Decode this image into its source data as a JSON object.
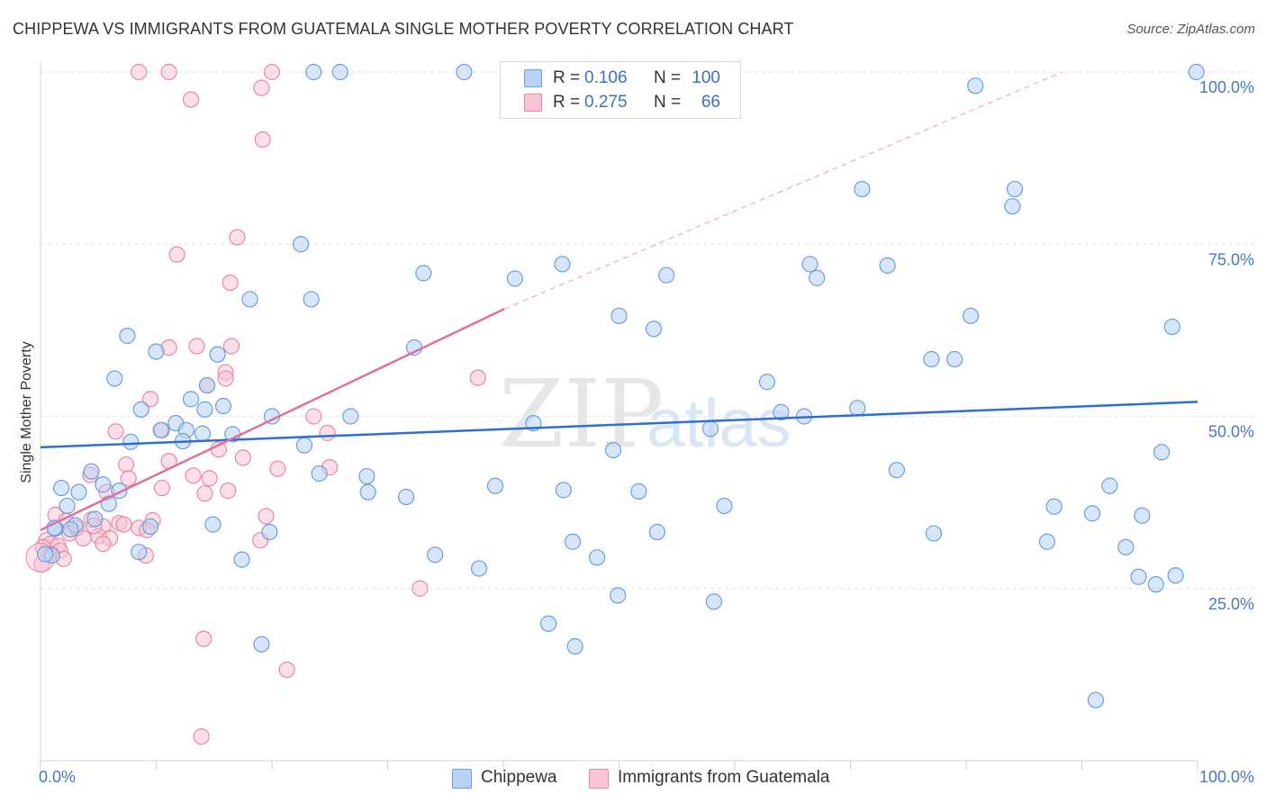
{
  "title": "CHIPPEWA VS IMMIGRANTS FROM GUATEMALA SINGLE MOTHER POVERTY CORRELATION CHART",
  "source": "Source: ZipAtlas.com",
  "watermark": {
    "zip": "ZIP",
    "atlas": "atlas"
  },
  "legend": {
    "r_label": "R =",
    "n_label": "N =",
    "items": [
      {
        "name": "Chippewa",
        "r": "0.106",
        "n": "100",
        "fill": "#b8d2f4",
        "stroke": "#6a9ee0"
      },
      {
        "name": "Immigrants from Guatemala",
        "r": "0.275",
        "n": "66",
        "fill": "#f9c4d4",
        "stroke": "#e888a8"
      }
    ]
  },
  "chart_data": {
    "type": "scatter",
    "title": "CHIPPEWA VS IMMIGRANTS FROM GUATEMALA SINGLE MOTHER POVERTY CORRELATION CHART",
    "xlabel": "",
    "ylabel": "Single Mother Poverty",
    "xlim": [
      0,
      100
    ],
    "ylim": [
      0,
      101
    ],
    "x_tick_labels": {
      "left": "0.0%",
      "right": "100.0%"
    },
    "y_ticks": [
      {
        "value": 25,
        "label": "25.0%"
      },
      {
        "value": 50,
        "label": "50.0%"
      },
      {
        "value": 75,
        "label": "75.0%"
      },
      {
        "value": 100,
        "label": "100.0%"
      }
    ],
    "grid": "horizontal dashed",
    "colors": {
      "blue_fill": "#b8d2f4",
      "blue_stroke": "#6a9ee0",
      "blue_line": "#2f6fd0",
      "pink_fill": "#f9c4d4",
      "pink_stroke": "#e888a8",
      "pink_line": "#e0709a"
    },
    "trendlines": [
      {
        "series": "Chippewa",
        "x0": 0,
        "y0": 45.5,
        "x1": 100,
        "y1": 52.1,
        "style": "solid"
      },
      {
        "series": "Immigrants from Guatemala",
        "x0": 0,
        "y0": 33.5,
        "x1": 40.1,
        "y1": 65.6,
        "style": "solid"
      },
      {
        "series": "Immigrants from Guatemala",
        "x0": 40.1,
        "y0": 65.6,
        "x1": 88.3,
        "y1": 100.0,
        "style": "dashed"
      }
    ],
    "series": [
      {
        "name": "Chippewa",
        "points": [
          [
            23.6,
            100
          ],
          [
            25.9,
            100
          ],
          [
            36.6,
            100
          ],
          [
            99.9,
            100
          ],
          [
            80.8,
            98
          ],
          [
            71.0,
            83
          ],
          [
            84.2,
            83
          ],
          [
            84.0,
            80.5
          ],
          [
            22.5,
            75
          ],
          [
            33.1,
            70.8
          ],
          [
            41.0,
            70.0
          ],
          [
            45.1,
            72.1
          ],
          [
            54.1,
            70.5
          ],
          [
            66.5,
            72.1
          ],
          [
            67.1,
            70.1
          ],
          [
            73.2,
            71.9
          ],
          [
            18.1,
            67
          ],
          [
            23.4,
            67
          ],
          [
            50.0,
            64.6
          ],
          [
            53.0,
            62.7
          ],
          [
            80.4,
            64.6
          ],
          [
            97.8,
            63.0
          ],
          [
            7.5,
            61.7
          ],
          [
            10.0,
            59.4
          ],
          [
            15.3,
            59.0
          ],
          [
            32.3,
            60.0
          ],
          [
            77.0,
            58.3
          ],
          [
            79.0,
            58.3
          ],
          [
            6.4,
            55.5
          ],
          [
            62.8,
            55.0
          ],
          [
            13.0,
            52.5
          ],
          [
            8.7,
            51.0
          ],
          [
            14.4,
            54.5
          ],
          [
            14.2,
            51.0
          ],
          [
            15.8,
            51.5
          ],
          [
            20.0,
            50.0
          ],
          [
            26.8,
            50.0
          ],
          [
            57.9,
            48.2
          ],
          [
            64.0,
            50.6
          ],
          [
            66.0,
            50.0
          ],
          [
            70.6,
            51.2
          ],
          [
            42.6,
            49.0
          ],
          [
            11.7,
            49.0
          ],
          [
            10.4,
            48.0
          ],
          [
            12.6,
            48.0
          ],
          [
            14.0,
            47.5
          ],
          [
            16.6,
            47.4
          ],
          [
            12.3,
            46.4
          ],
          [
            7.8,
            46.3
          ],
          [
            22.8,
            45.8
          ],
          [
            49.5,
            45.1
          ],
          [
            96.9,
            44.8
          ],
          [
            4.4,
            42.0
          ],
          [
            24.1,
            41.7
          ],
          [
            28.2,
            41.3
          ],
          [
            74.0,
            42.2
          ],
          [
            1.8,
            39.6
          ],
          [
            3.3,
            39.0
          ],
          [
            6.8,
            39.2
          ],
          [
            5.4,
            40.1
          ],
          [
            28.3,
            39.0
          ],
          [
            31.6,
            38.3
          ],
          [
            39.3,
            39.9
          ],
          [
            45.2,
            39.3
          ],
          [
            51.7,
            39.1
          ],
          [
            92.4,
            39.9
          ],
          [
            2.3,
            37.0
          ],
          [
            5.9,
            37.3
          ],
          [
            59.1,
            37.0
          ],
          [
            87.6,
            36.9
          ],
          [
            90.9,
            35.9
          ],
          [
            95.2,
            35.6
          ],
          [
            4.7,
            35.1
          ],
          [
            3.0,
            34.2
          ],
          [
            1.3,
            33.7
          ],
          [
            9.5,
            34.0
          ],
          [
            14.9,
            34.3
          ],
          [
            19.8,
            33.2
          ],
          [
            53.3,
            33.2
          ],
          [
            77.2,
            33.0
          ],
          [
            46.0,
            31.8
          ],
          [
            87.0,
            31.8
          ],
          [
            93.8,
            31.0
          ],
          [
            8.5,
            30.3
          ],
          [
            1.0,
            29.8
          ],
          [
            34.1,
            29.9
          ],
          [
            48.1,
            29.5
          ],
          [
            17.4,
            29.2
          ],
          [
            37.9,
            27.9
          ],
          [
            94.9,
            26.7
          ],
          [
            96.4,
            25.6
          ],
          [
            98.1,
            26.9
          ],
          [
            49.9,
            24.0
          ],
          [
            58.2,
            23.1
          ],
          [
            43.9,
            19.9
          ],
          [
            19.1,
            16.9
          ],
          [
            46.2,
            16.6
          ],
          [
            91.2,
            8.8
          ],
          [
            0.4,
            30.0
          ],
          [
            1.2,
            33.8
          ],
          [
            2.6,
            33.6
          ]
        ]
      },
      {
        "name": "Immigrants from Guatemala",
        "points": [
          [
            8.5,
            100
          ],
          [
            11.1,
            100
          ],
          [
            20.0,
            100
          ],
          [
            19.1,
            97.7
          ],
          [
            13.0,
            96.0
          ],
          [
            19.2,
            90.2
          ],
          [
            17.0,
            76.0
          ],
          [
            11.8,
            73.5
          ],
          [
            16.4,
            69.4
          ],
          [
            16.5,
            60.2
          ],
          [
            11.1,
            60.0
          ],
          [
            16.0,
            56.4
          ],
          [
            14.4,
            54.5
          ],
          [
            16.0,
            55.5
          ],
          [
            37.8,
            55.6
          ],
          [
            9.5,
            52.5
          ],
          [
            23.6,
            50.0
          ],
          [
            24.8,
            47.6
          ],
          [
            10.5,
            48.0
          ],
          [
            6.5,
            47.8
          ],
          [
            11.1,
            43.5
          ],
          [
            15.4,
            45.2
          ],
          [
            17.5,
            44.0
          ],
          [
            25.0,
            42.6
          ],
          [
            7.4,
            43.0
          ],
          [
            4.3,
            41.5
          ],
          [
            7.6,
            41.0
          ],
          [
            13.2,
            41.4
          ],
          [
            20.5,
            42.4
          ],
          [
            10.5,
            39.6
          ],
          [
            14.2,
            38.8
          ],
          [
            16.2,
            39.2
          ],
          [
            5.7,
            39.0
          ],
          [
            1.3,
            35.7
          ],
          [
            2.2,
            34.8
          ],
          [
            4.4,
            35.0
          ],
          [
            6.8,
            34.5
          ],
          [
            9.7,
            34.9
          ],
          [
            19.5,
            35.5
          ],
          [
            5.4,
            34.0
          ],
          [
            8.5,
            33.8
          ],
          [
            2.5,
            33.0
          ],
          [
            5.0,
            32.6
          ],
          [
            3.7,
            32.3
          ],
          [
            9.2,
            33.5
          ],
          [
            19.0,
            32.0
          ],
          [
            6.0,
            32.3
          ],
          [
            0.5,
            32.0
          ],
          [
            0.9,
            31.5
          ],
          [
            0.2,
            31.0
          ],
          [
            1.5,
            31.2
          ],
          [
            5.4,
            31.5
          ],
          [
            1.7,
            30.5
          ],
          [
            0.8,
            30.0
          ],
          [
            9.1,
            29.8
          ],
          [
            0.1,
            28.5
          ],
          [
            3.1,
            33.8
          ],
          [
            4.6,
            34.1
          ],
          [
            7.2,
            34.3
          ],
          [
            14.6,
            41.0
          ],
          [
            32.8,
            25.0
          ],
          [
            14.1,
            17.7
          ],
          [
            21.3,
            13.2
          ],
          [
            13.9,
            3.5
          ],
          [
            13.5,
            60.2
          ],
          [
            2.0,
            29.3
          ]
        ]
      }
    ]
  }
}
